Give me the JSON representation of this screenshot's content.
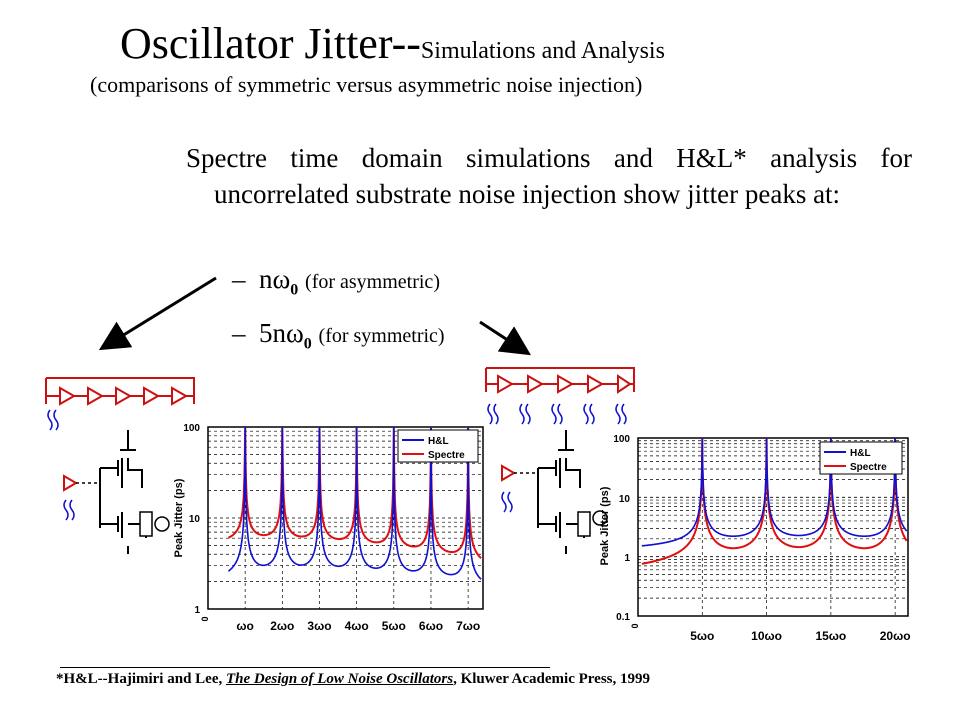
{
  "title": {
    "main": "Oscillator Jitter--",
    "suffix": "Simulations and Analysis"
  },
  "subtitle": "(comparisons of symmetric versus asymmetric noise injection)",
  "body_text": "Spectre time domain simulations and H&L* analysis for uncorrelated substrate noise injection show jitter peaks at:",
  "bullets": [
    {
      "dash": "–",
      "prefix": "nω",
      "sub": "0",
      "note": "(for asymmetric)"
    },
    {
      "dash": "–",
      "prefix": "5nω",
      "sub": "0",
      "note": "(for symmetric)"
    }
  ],
  "footnote": {
    "pre": "*H&L--Hajimiri and Lee, ",
    "book": "The Design of Low Noise Oscillators",
    "post": ", Kluwer Academic Press, 1999"
  },
  "colors": {
    "hl": "#1010d0",
    "spectre": "#e01010",
    "ring": "#cc1111"
  },
  "chart_data": [
    {
      "type": "line",
      "ylabel": "Peak Jitter (ps)",
      "yscale": "log",
      "ylim": [
        1,
        100
      ],
      "yticks": [
        "1",
        "10",
        "100"
      ],
      "xtick_zero": "0",
      "categories": [
        "ωo",
        "2ωo",
        "3ωo",
        "4ωo",
        "5ωo",
        "6ωo",
        "7ωo"
      ],
      "grid": true,
      "legend": "top-right",
      "series": [
        {
          "name": "H&L",
          "color": "#1010d0",
          "description_peaks_at": [
            1,
            2,
            3,
            4,
            5,
            6,
            7
          ]
        },
        {
          "name": "Spectre",
          "color": "#e01010",
          "description_peaks_at": [
            1,
            2,
            3,
            4,
            5,
            6,
            7
          ]
        }
      ]
    },
    {
      "type": "line",
      "ylabel": "Peak Jitter (ps)",
      "yscale": "log",
      "ylim": [
        0.1,
        100
      ],
      "yticks": [
        "0.1",
        "1",
        "10",
        "100"
      ],
      "xtick_zero": "0",
      "categories": [
        "5ωo",
        "10ωo",
        "15ωo",
        "20ωo"
      ],
      "grid": true,
      "legend": "top-right",
      "series": [
        {
          "name": "H&L",
          "color": "#1010d0",
          "description_peaks_at": [
            5,
            10,
            15,
            20
          ]
        },
        {
          "name": "Spectre",
          "color": "#e01010",
          "description_peaks_at": [
            5,
            10,
            15,
            20
          ]
        }
      ]
    }
  ]
}
